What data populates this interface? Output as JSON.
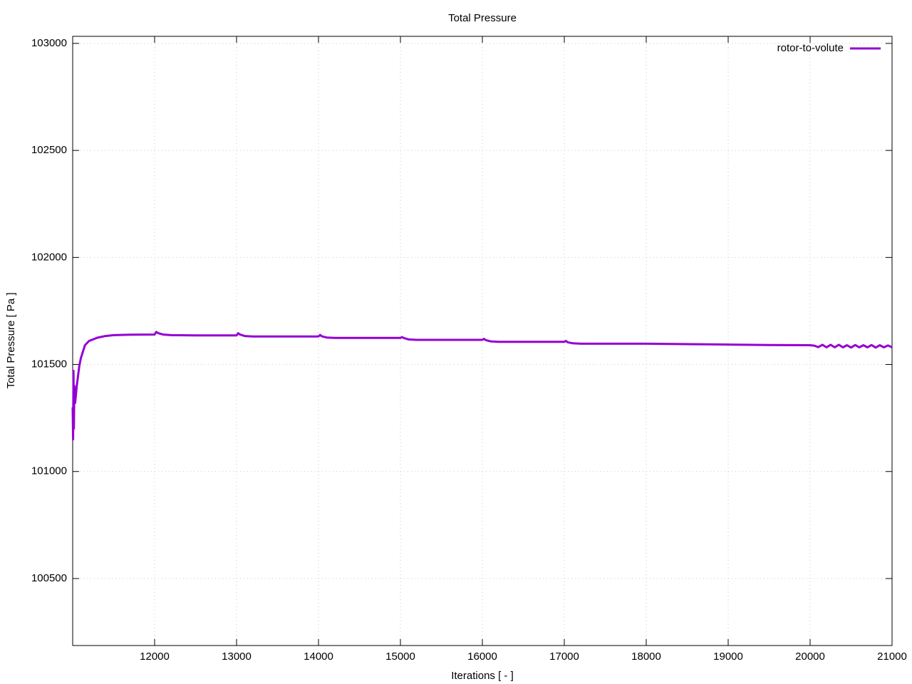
{
  "chart_data": {
    "type": "line",
    "title": "Total Pressure",
    "x_label": "Iterations [ - ]",
    "y_label": "Total Pressure [ Pa ]",
    "xlim": [
      11000,
      21000
    ],
    "ylim": [
      100187,
      103033
    ],
    "xticks": [
      12000,
      13000,
      14000,
      15000,
      16000,
      17000,
      18000,
      19000,
      20000,
      21000
    ],
    "yticks": [
      100500,
      101000,
      101500,
      102000,
      102500,
      103000
    ],
    "grid": true,
    "legend": "top-right",
    "x": [
      11000,
      11005,
      11010,
      11015,
      11020,
      11030,
      11050,
      11080,
      11100,
      11150,
      11200,
      11300,
      11400,
      11500,
      11700,
      12000,
      12020,
      12040,
      12100,
      12200,
      12500,
      13000,
      13020,
      13040,
      13100,
      13200,
      13500,
      14000,
      14020,
      14040,
      14100,
      14200,
      14500,
      15000,
      15020,
      15040,
      15100,
      15200,
      15500,
      16000,
      16020,
      16040,
      16100,
      16200,
      16500,
      17000,
      17020,
      17040,
      17100,
      17200,
      17500,
      18000,
      18500,
      19000,
      19500,
      20000,
      20050,
      20100,
      20150,
      20200,
      20250,
      20300,
      20350,
      20400,
      20450,
      20500,
      20550,
      20600,
      20650,
      20700,
      20750,
      20800,
      20850,
      20900,
      20950,
      21000
    ],
    "series": [
      {
        "name": "rotor-to-volute",
        "color": "#9400d3",
        "values": [
          101300,
          101150,
          101470,
          101200,
          101400,
          101320,
          101400,
          101490,
          101530,
          101590,
          101610,
          101625,
          101633,
          101637,
          101639,
          101640,
          101652,
          101647,
          101640,
          101637,
          101636,
          101636,
          101646,
          101640,
          101633,
          101631,
          101631,
          101631,
          101638,
          101632,
          101626,
          101624,
          101624,
          101624,
          101628,
          101624,
          101617,
          101615,
          101615,
          101615,
          101620,
          101614,
          101608,
          101606,
          101606,
          101606,
          101610,
          101604,
          101599,
          101597,
          101597,
          101597,
          101595,
          101593,
          101591,
          101590,
          101588,
          101581,
          101592,
          101580,
          101592,
          101580,
          101592,
          101580,
          101590,
          101579,
          101591,
          101580,
          101590,
          101580,
          101591,
          101579,
          101590,
          101580,
          101589,
          101580
        ]
      }
    ]
  }
}
